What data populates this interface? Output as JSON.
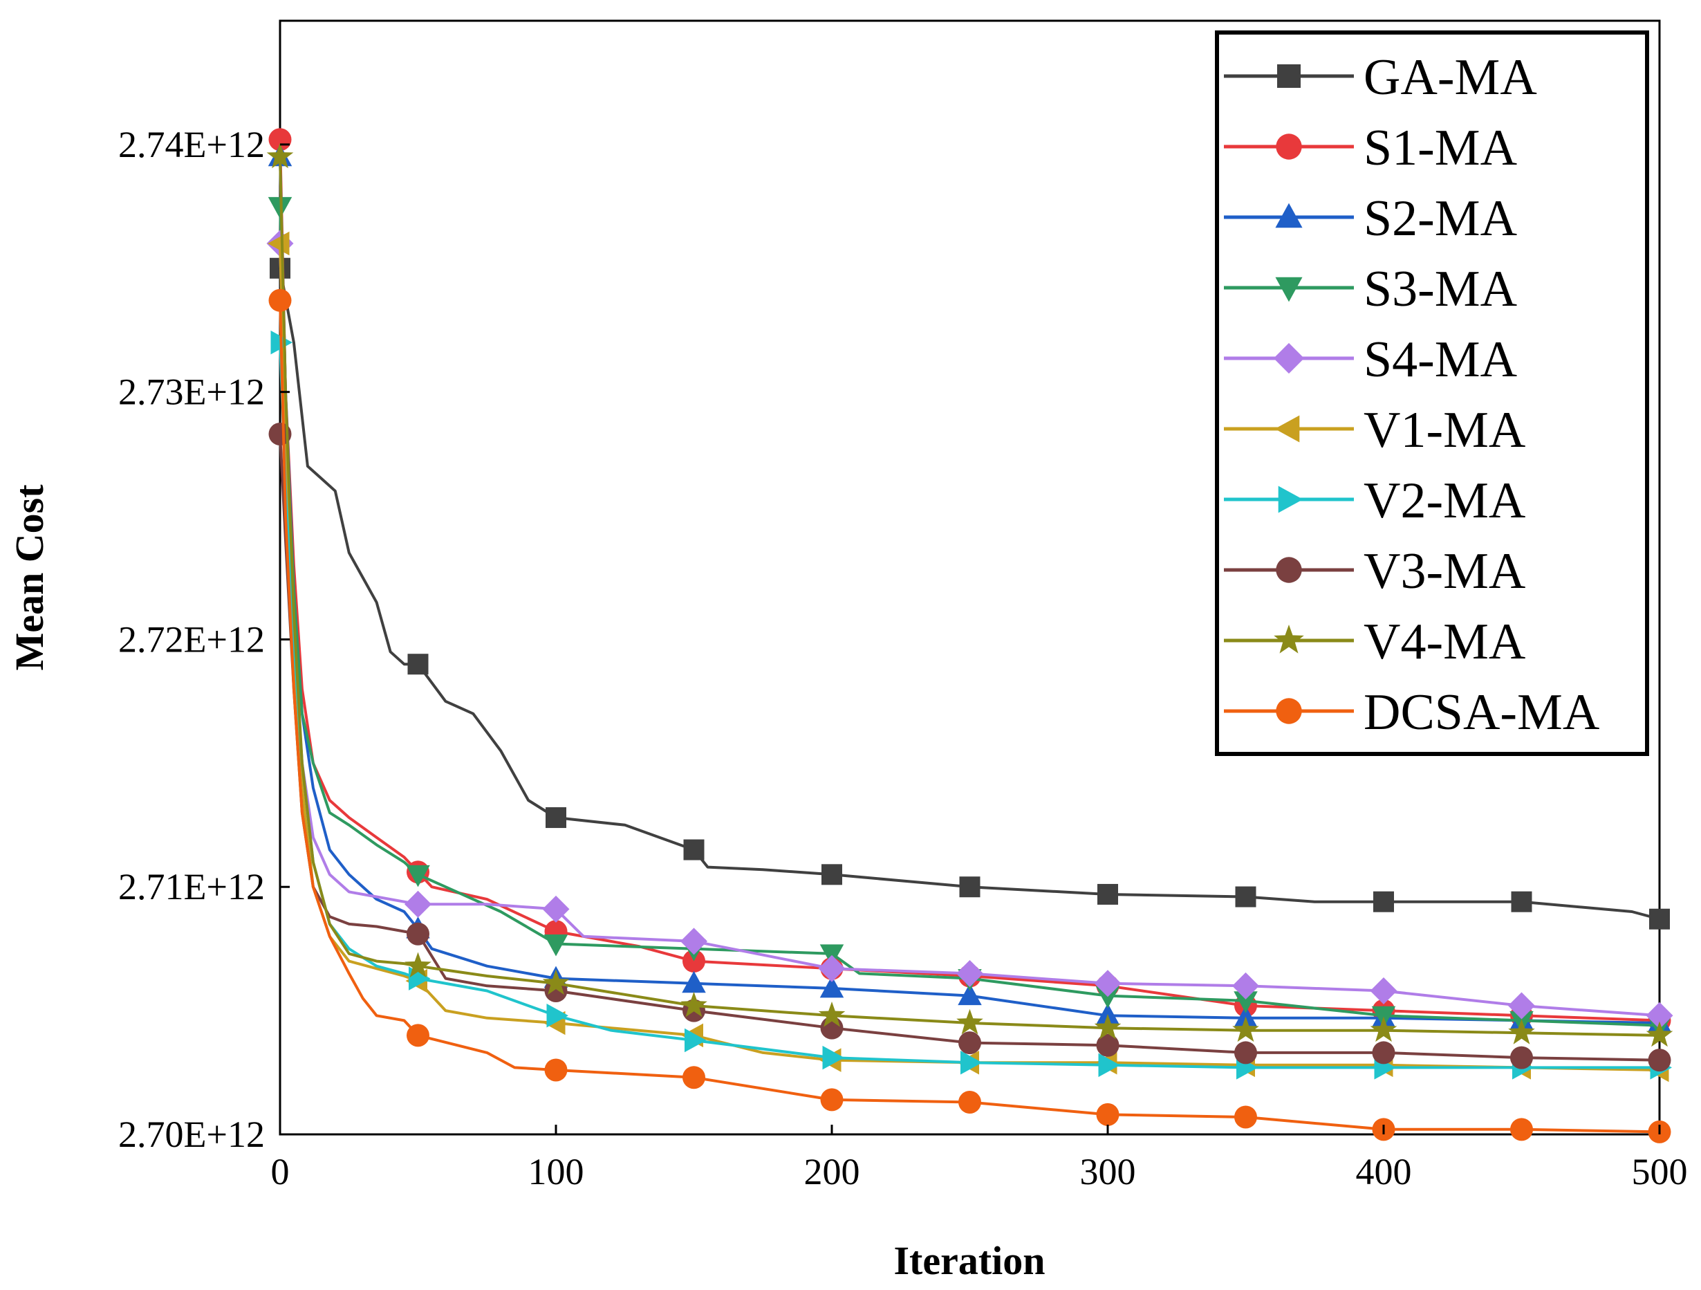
{
  "chart_data": {
    "type": "line",
    "xlabel": "Iteration",
    "ylabel": "Mean Cost",
    "xlim": [
      0,
      500
    ],
    "ylim": [
      2700000000000.0,
      2745000000000.0
    ],
    "x_ticks": [
      0,
      100,
      200,
      300,
      400,
      500
    ],
    "x_tick_labels": [
      "0",
      "100",
      "200",
      "300",
      "400",
      "500"
    ],
    "y_ticks": [
      2700000000000.0,
      2710000000000.0,
      2720000000000.0,
      2730000000000.0,
      2740000000000.0
    ],
    "y_tick_labels": [
      "2.70E+12",
      "2.71E+12",
      "2.72E+12",
      "2.73E+12",
      "2.74E+12"
    ],
    "grid": false,
    "legend_position": "top-right",
    "marker_x": [
      0,
      50,
      100,
      150,
      200,
      250,
      300,
      350,
      400,
      450,
      500
    ],
    "series": [
      {
        "name": "GA-MA",
        "color": "#404040",
        "marker": "square",
        "x": [
          0,
          5,
          10,
          15,
          20,
          25,
          30,
          35,
          40,
          45,
          50,
          60,
          70,
          80,
          90,
          100,
          125,
          150,
          155,
          175,
          200,
          250,
          300,
          350,
          375,
          400,
          450,
          490,
          500
        ],
        "y": [
          2735000000000.0,
          2732000000000.0,
          2727000000000.0,
          2726500000000.0,
          2726000000000.0,
          2723500000000.0,
          2722500000000.0,
          2721500000000.0,
          2719500000000.0,
          2719000000000.0,
          2719000000000.0,
          2717500000000.0,
          2717000000000.0,
          2715500000000.0,
          2713500000000.0,
          2712800000000.0,
          2712500000000.0,
          2711500000000.0,
          2710800000000.0,
          2710700000000.0,
          2710500000000.0,
          2710000000000.0,
          2709700000000.0,
          2709600000000.0,
          2709400000000.0,
          2709400000000.0,
          2709400000000.0,
          2709000000000.0,
          2708700000000.0
        ]
      },
      {
        "name": "S1-MA",
        "color": "#e8393b",
        "marker": "circle",
        "x": [
          0,
          2,
          5,
          8,
          12,
          18,
          25,
          35,
          45,
          55,
          75,
          100,
          130,
          150,
          200,
          250,
          300,
          350,
          400,
          450,
          500
        ],
        "y": [
          2740200000000.0,
          2730000000000.0,
          2723000000000.0,
          2718000000000.0,
          2715000000000.0,
          2713500000000.0,
          2712800000000.0,
          2712000000000.0,
          2711200000000.0,
          2710000000000.0,
          2709500000000.0,
          2708200000000.0,
          2707600000000.0,
          2707000000000.0,
          2706700000000.0,
          2706400000000.0,
          2706000000000.0,
          2705200000000.0,
          2705000000000.0,
          2704800000000.0,
          2704600000000.0
        ]
      },
      {
        "name": "S2-MA",
        "color": "#1f5fc8",
        "marker": "triangle-up",
        "x": [
          0,
          2,
          5,
          8,
          12,
          18,
          25,
          35,
          45,
          50,
          55,
          75,
          100,
          150,
          200,
          250,
          300,
          350,
          400,
          450,
          500
        ],
        "y": [
          2739500000000.0,
          2730000000000.0,
          2722000000000.0,
          2717000000000.0,
          2714000000000.0,
          2711500000000.0,
          2710500000000.0,
          2709500000000.0,
          2709000000000.0,
          2708300000000.0,
          2707500000000.0,
          2706800000000.0,
          2706300000000.0,
          2706100000000.0,
          2705900000000.0,
          2705600000000.0,
          2704800000000.0,
          2704700000000.0,
          2704700000000.0,
          2704600000000.0,
          2704500000000.0
        ]
      },
      {
        "name": "S3-MA",
        "color": "#2e9a60",
        "marker": "triangle-down",
        "x": [
          0,
          2,
          5,
          8,
          12,
          18,
          25,
          35,
          45,
          50,
          60,
          80,
          100,
          150,
          200,
          210,
          250,
          300,
          350,
          400,
          450,
          500
        ],
        "y": [
          2737500000000.0,
          2729000000000.0,
          2722000000000.0,
          2717000000000.0,
          2715000000000.0,
          2713000000000.0,
          2712500000000.0,
          2711700000000.0,
          2711000000000.0,
          2710500000000.0,
          2710000000000.0,
          2709000000000.0,
          2707700000000.0,
          2707500000000.0,
          2707300000000.0,
          2706500000000.0,
          2706300000000.0,
          2705600000000.0,
          2705400000000.0,
          2704800000000.0,
          2704600000000.0,
          2704400000000.0
        ]
      },
      {
        "name": "S4-MA",
        "color": "#b07de8",
        "marker": "diamond",
        "x": [
          0,
          2,
          5,
          8,
          12,
          18,
          25,
          35,
          45,
          50,
          75,
          100,
          110,
          150,
          200,
          250,
          300,
          350,
          400,
          450,
          500
        ],
        "y": [
          2736000000000.0,
          2728000000000.0,
          2720000000000.0,
          2715000000000.0,
          2712000000000.0,
          2710500000000.0,
          2709800000000.0,
          2709600000000.0,
          2709400000000.0,
          2709300000000.0,
          2709300000000.0,
          2709100000000.0,
          2708000000000.0,
          2707800000000.0,
          2706700000000.0,
          2706500000000.0,
          2706100000000.0,
          2706000000000.0,
          2705800000000.0,
          2705200000000.0,
          2704800000000.0
        ]
      },
      {
        "name": "V1-MA",
        "color": "#c9a020",
        "marker": "triangle-left",
        "x": [
          0,
          2,
          5,
          8,
          12,
          18,
          25,
          35,
          45,
          50,
          60,
          75,
          100,
          150,
          175,
          200,
          250,
          300,
          350,
          400,
          450,
          500
        ],
        "y": [
          2736000000000.0,
          2728000000000.0,
          2720000000000.0,
          2714000000000.0,
          2710000000000.0,
          2708000000000.0,
          2707000000000.0,
          2706700000000.0,
          2706400000000.0,
          2706200000000.0,
          2705000000000.0,
          2704700000000.0,
          2704500000000.0,
          2704000000000.0,
          2703300000000.0,
          2703000000000.0,
          2702900000000.0,
          2702900000000.0,
          2702800000000.0,
          2702800000000.0,
          2702700000000.0,
          2702600000000.0
        ]
      },
      {
        "name": "V2-MA",
        "color": "#20c4cc",
        "marker": "triangle-right",
        "x": [
          0,
          2,
          5,
          8,
          12,
          18,
          25,
          35,
          45,
          50,
          75,
          100,
          120,
          150,
          200,
          250,
          300,
          350,
          400,
          450,
          500
        ],
        "y": [
          2732000000000.0,
          2726000000000.0,
          2720000000000.0,
          2715000000000.0,
          2711000000000.0,
          2708500000000.0,
          2707500000000.0,
          2706800000000.0,
          2706500000000.0,
          2706300000000.0,
          2705800000000.0,
          2704800000000.0,
          2704200000000.0,
          2703800000000.0,
          2703100000000.0,
          2702900000000.0,
          2702800000000.0,
          2702700000000.0,
          2702700000000.0,
          2702700000000.0,
          2702700000000.0
        ]
      },
      {
        "name": "V3-MA",
        "color": "#7a4040",
        "marker": "circle",
        "x": [
          0,
          2,
          5,
          8,
          12,
          18,
          25,
          35,
          45,
          50,
          60,
          75,
          100,
          150,
          200,
          250,
          300,
          350,
          400,
          450,
          500
        ],
        "y": [
          2728300000000.0,
          2724000000000.0,
          2718000000000.0,
          2713000000000.0,
          2710000000000.0,
          2708800000000.0,
          2708500000000.0,
          2708400000000.0,
          2708200000000.0,
          2708100000000.0,
          2706300000000.0,
          2706000000000.0,
          2705800000000.0,
          2705000000000.0,
          2704300000000.0,
          2703700000000.0,
          2703600000000.0,
          2703300000000.0,
          2703300000000.0,
          2703100000000.0,
          2703000000000.0
        ]
      },
      {
        "name": "V4-MA",
        "color": "#8a8a18",
        "marker": "star",
        "x": [
          0,
          2,
          5,
          8,
          12,
          18,
          25,
          35,
          45,
          50,
          75,
          100,
          150,
          200,
          250,
          300,
          350,
          400,
          450,
          500
        ],
        "y": [
          2739500000000.0,
          2730000000000.0,
          2721000000000.0,
          2715000000000.0,
          2711000000000.0,
          2708500000000.0,
          2707300000000.0,
          2707000000000.0,
          2706900000000.0,
          2706800000000.0,
          2706400000000.0,
          2706100000000.0,
          2705200000000.0,
          2704800000000.0,
          2704500000000.0,
          2704300000000.0,
          2704200000000.0,
          2704200000000.0,
          2704100000000.0,
          2704000000000.0
        ]
      },
      {
        "name": "DCSA-MA",
        "color": "#f06010",
        "marker": "circle",
        "x": [
          0,
          2,
          5,
          8,
          12,
          18,
          25,
          30,
          35,
          45,
          50,
          75,
          85,
          100,
          150,
          200,
          250,
          300,
          350,
          400,
          450,
          500
        ],
        "y": [
          2733700000000.0,
          2725000000000.0,
          2718000000000.0,
          2713000000000.0,
          2710000000000.0,
          2708000000000.0,
          2706500000000.0,
          2705500000000.0,
          2704800000000.0,
          2704600000000.0,
          2704000000000.0,
          2703300000000.0,
          2702700000000.0,
          2702600000000.0,
          2702300000000.0,
          2701400000000.0,
          2701300000000.0,
          2700800000000.0,
          2700700000000.0,
          2700200000000.0,
          2700200000000.0,
          2700100000000.0
        ]
      }
    ]
  }
}
